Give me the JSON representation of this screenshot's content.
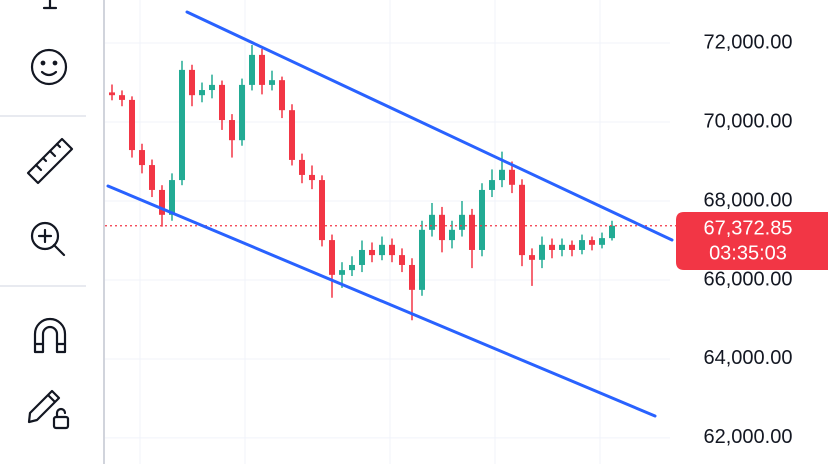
{
  "chart_data": {
    "type": "candlestick",
    "ylim": [
      61340,
      73090
    ],
    "yticks": [
      {
        "value": 62000,
        "label": "62,000.00"
      },
      {
        "value": 64000,
        "label": "64,000.00"
      },
      {
        "value": 66000,
        "label": "66,000.00"
      },
      {
        "value": 68000,
        "label": "68,000.00"
      },
      {
        "value": 70000,
        "label": "70,000.00"
      },
      {
        "value": 72000,
        "label": "72,000.00"
      }
    ],
    "grid": true,
    "up_color": "#22ab94",
    "down_color": "#f23645",
    "open": [
      70750,
      70680,
      70560,
      69290,
      68910,
      68280,
      67650,
      68530,
      71320,
      70680,
      70810,
      70940,
      70050,
      69540,
      70940,
      71700,
      70940,
      71060,
      70300,
      69040,
      68660,
      68530,
      67010,
      66130,
      66250,
      66380,
      66760,
      66630,
      66890,
      66630,
      66380,
      65750,
      67270,
      67650,
      67010,
      67270,
      67650,
      66760,
      68280,
      68530,
      68790,
      68410,
      66630,
      66510,
      66890,
      66760,
      66890,
      66760,
      67010,
      66890,
      67060
    ],
    "high": [
      70950,
      70800,
      70650,
      69450,
      69050,
      68400,
      68700,
      71550,
      71450,
      71000,
      71200,
      71050,
      70200,
      71100,
      71950,
      71850,
      71300,
      71150,
      70450,
      69200,
      68900,
      68650,
      67150,
      66450,
      66600,
      67000,
      66950,
      67100,
      67050,
      66800,
      66550,
      67500,
      67950,
      67850,
      67500,
      68000,
      67800,
      68450,
      68800,
      69250,
      69000,
      68550,
      66800,
      67100,
      67050,
      67050,
      67000,
      67150,
      67100,
      67200,
      67500
    ],
    "low": [
      70550,
      70400,
      69100,
      68700,
      68100,
      67350,
      67500,
      68400,
      70400,
      70500,
      70600,
      69800,
      69100,
      69400,
      70800,
      70700,
      70800,
      70100,
      68900,
      68450,
      68300,
      66850,
      65550,
      65800,
      66100,
      66200,
      66450,
      66500,
      66450,
      66200,
      64980,
      65600,
      67100,
      66700,
      66800,
      67100,
      66300,
      66600,
      68100,
      68350,
      68200,
      66350,
      65850,
      66300,
      66550,
      66600,
      66600,
      66650,
      66750,
      66800,
      67000
    ],
    "close": [
      70680,
      70560,
      69290,
      68910,
      68280,
      67650,
      68530,
      71320,
      70680,
      70810,
      70940,
      70050,
      69540,
      70940,
      71700,
      70940,
      71060,
      70300,
      69040,
      68660,
      68530,
      67010,
      66130,
      66250,
      66380,
      66760,
      66630,
      66890,
      66630,
      66380,
      65750,
      67270,
      67650,
      67010,
      67270,
      67650,
      66760,
      68280,
      68530,
      68790,
      68410,
      66630,
      66510,
      66890,
      66760,
      66890,
      66760,
      67010,
      66890,
      67060,
      67372.85
    ],
    "last_price": {
      "value": 67372.85,
      "label": "67,372.85"
    },
    "countdown": "03:35:03"
  }
}
